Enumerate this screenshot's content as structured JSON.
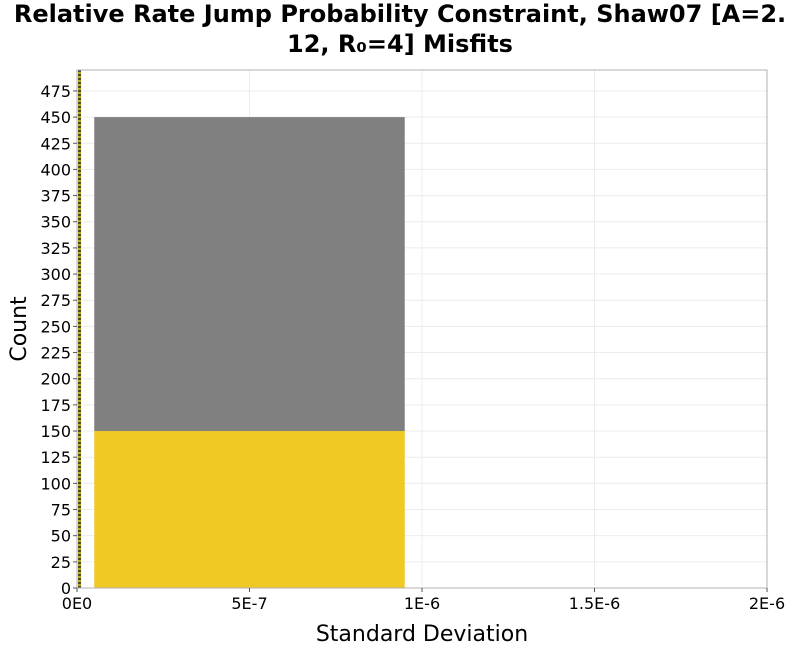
{
  "chart_data": {
    "type": "bar",
    "title": "Relative Rate Jump Probability Constraint, Shaw07 [A=2.12, R₀=4] Misfits",
    "title_lines": [
      "Relative Rate Jump Probability Constraint, Shaw07 [A=2.",
      "12, R₀=4] Misfits"
    ],
    "xlabel": "Standard Deviation",
    "ylabel": "Count",
    "xlim": [
      0,
      2e-06
    ],
    "ylim": [
      0,
      495
    ],
    "x_ticks": [
      0,
      5e-07,
      1e-06,
      1.5e-06,
      2e-06
    ],
    "x_tick_labels": [
      "0E0",
      "5E-7",
      "1E-6",
      "1.5E-6",
      "2E-6"
    ],
    "y_ticks": [
      0,
      25,
      50,
      75,
      100,
      125,
      150,
      175,
      200,
      225,
      250,
      275,
      300,
      325,
      350,
      375,
      400,
      425,
      450,
      475
    ],
    "bins": [
      {
        "x_start": 5e-08,
        "x_end": 9.5e-07,
        "series": [
          {
            "name": "yellow",
            "value": 150,
            "color": "#f0c925"
          },
          {
            "name": "gray",
            "value": 300,
            "color": "#808080"
          }
        ]
      }
    ],
    "reference_lines": [
      {
        "x": 0,
        "style": "dotted",
        "colors": [
          "#4a4a2a",
          "#b8a830"
        ]
      }
    ],
    "grid": true
  }
}
